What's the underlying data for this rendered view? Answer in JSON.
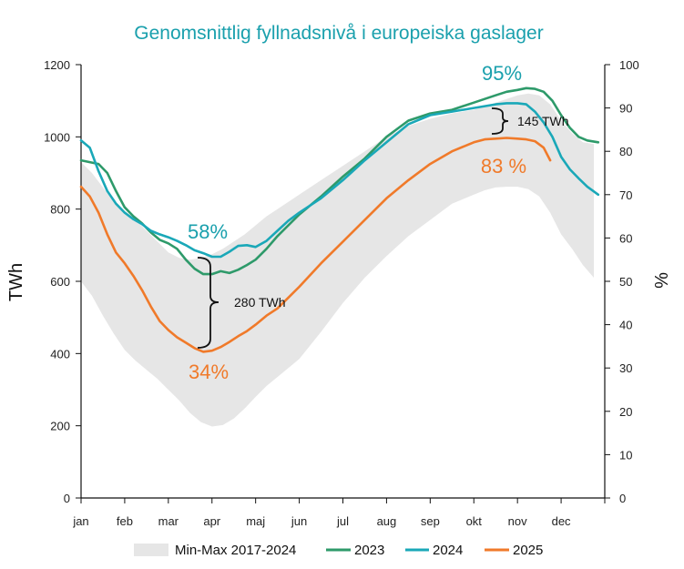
{
  "chart_data": {
    "type": "line",
    "title": "Genomsnittlig fyllnadsnivå i europeiska gaslager",
    "ylabel": "TWh",
    "y2label": "%",
    "ylim": [
      0,
      1200
    ],
    "y2lim": [
      0,
      100
    ],
    "yticks": [
      0,
      200,
      400,
      600,
      800,
      1000,
      1200
    ],
    "y2ticks": [
      0,
      10,
      20,
      30,
      40,
      50,
      60,
      70,
      80,
      90,
      100
    ],
    "months": [
      "jan",
      "feb",
      "mar",
      "apr",
      "maj",
      "jun",
      "jul",
      "aug",
      "sep",
      "okt",
      "nov",
      "dec"
    ],
    "band": {
      "name": "Min-Max 2017-2024",
      "color": "#e6e6e6",
      "x": [
        0,
        0.25,
        0.5,
        0.75,
        1,
        1.25,
        1.5,
        1.75,
        2,
        2.25,
        2.5,
        2.75,
        3,
        3.25,
        3.5,
        3.75,
        4,
        4.25,
        4.5,
        4.75,
        5,
        5.5,
        6,
        6.5,
        7,
        7.5,
        8,
        8.5,
        9,
        9.25,
        9.5,
        9.75,
        10,
        10.25,
        10.5,
        10.75,
        11,
        11.25,
        11.5,
        11.75
      ],
      "min": [
        600,
        560,
        505,
        455,
        410,
        380,
        355,
        330,
        300,
        270,
        235,
        210,
        198,
        202,
        220,
        248,
        280,
        310,
        335,
        360,
        385,
        460,
        540,
        610,
        670,
        725,
        770,
        815,
        840,
        852,
        860,
        862,
        862,
        855,
        835,
        790,
        730,
        690,
        645,
        610
      ],
      "max": [
        930,
        900,
        860,
        820,
        790,
        770,
        740,
        710,
        680,
        665,
        660,
        665,
        675,
        690,
        710,
        730,
        755,
        780,
        800,
        820,
        840,
        880,
        920,
        960,
        1000,
        1030,
        1050,
        1065,
        1075,
        1085,
        1095,
        1105,
        1115,
        1120,
        1115,
        1090,
        1045,
        1010,
        985,
        980
      ]
    },
    "series": [
      {
        "name": "2023",
        "color": "#2e9a6a",
        "x": [
          0,
          0.2,
          0.4,
          0.6,
          0.8,
          1,
          1.2,
          1.4,
          1.6,
          1.8,
          2,
          2.2,
          2.4,
          2.6,
          2.8,
          3,
          3.2,
          3.4,
          3.6,
          3.8,
          4,
          4.25,
          4.5,
          4.75,
          5,
          5.5,
          6,
          6.5,
          7,
          7.5,
          8,
          8.5,
          9,
          9.25,
          9.5,
          9.75,
          10,
          10.2,
          10.4,
          10.6,
          10.8,
          11,
          11.2,
          11.4,
          11.6,
          11.85
        ],
        "values": [
          935,
          930,
          925,
          900,
          850,
          805,
          780,
          760,
          735,
          715,
          705,
          690,
          660,
          635,
          620,
          620,
          628,
          623,
          632,
          645,
          660,
          690,
          725,
          755,
          785,
          835,
          890,
          940,
          1000,
          1045,
          1065,
          1075,
          1095,
          1105,
          1115,
          1125,
          1130,
          1135,
          1133,
          1125,
          1100,
          1060,
          1025,
          1000,
          990,
          985
        ]
      },
      {
        "name": "2024",
        "color": "#1aa8b8",
        "x": [
          0,
          0.2,
          0.4,
          0.6,
          0.8,
          1,
          1.2,
          1.4,
          1.6,
          1.8,
          2,
          2.2,
          2.4,
          2.6,
          2.8,
          3,
          3.2,
          3.4,
          3.6,
          3.8,
          4,
          4.25,
          4.5,
          4.75,
          5,
          5.5,
          6,
          6.5,
          7,
          7.5,
          8,
          8.5,
          9,
          9.25,
          9.5,
          9.75,
          10,
          10.2,
          10.4,
          10.6,
          10.8,
          11,
          11.2,
          11.4,
          11.6,
          11.85
        ],
        "values": [
          990,
          970,
          905,
          850,
          815,
          790,
          772,
          758,
          740,
          730,
          722,
          712,
          700,
          686,
          678,
          668,
          668,
          682,
          698,
          700,
          695,
          712,
          740,
          768,
          790,
          830,
          880,
          935,
          985,
          1035,
          1060,
          1070,
          1080,
          1085,
          1090,
          1093,
          1093,
          1090,
          1070,
          1040,
          1000,
          945,
          910,
          885,
          862,
          840
        ]
      },
      {
        "name": "2025",
        "color": "#f07a2a",
        "x": [
          0,
          0.2,
          0.4,
          0.6,
          0.8,
          1,
          1.2,
          1.4,
          1.6,
          1.8,
          2,
          2.2,
          2.4,
          2.6,
          2.8,
          3,
          3.2,
          3.4,
          3.6,
          3.8,
          4,
          4.25,
          4.5,
          4.75,
          5,
          5.5,
          6,
          6.5,
          7,
          7.5,
          8,
          8.5,
          9,
          9.25,
          9.5,
          9.75,
          10,
          10.2,
          10.4,
          10.6,
          10.75
        ],
        "values": [
          862,
          835,
          790,
          730,
          680,
          650,
          615,
          575,
          530,
          490,
          465,
          445,
          430,
          415,
          405,
          408,
          418,
          432,
          448,
          462,
          480,
          505,
          525,
          555,
          585,
          650,
          710,
          770,
          830,
          880,
          925,
          960,
          985,
          993,
          995,
          997,
          995,
          993,
          988,
          970,
          935
        ]
      }
    ],
    "annotations": {
      "peak_2023": "95%",
      "low_2024": "58%",
      "low_2025": "34%",
      "end_2025": "83 %",
      "gap_spring": "280 TWh",
      "gap_autumn": "145 TWh"
    }
  }
}
